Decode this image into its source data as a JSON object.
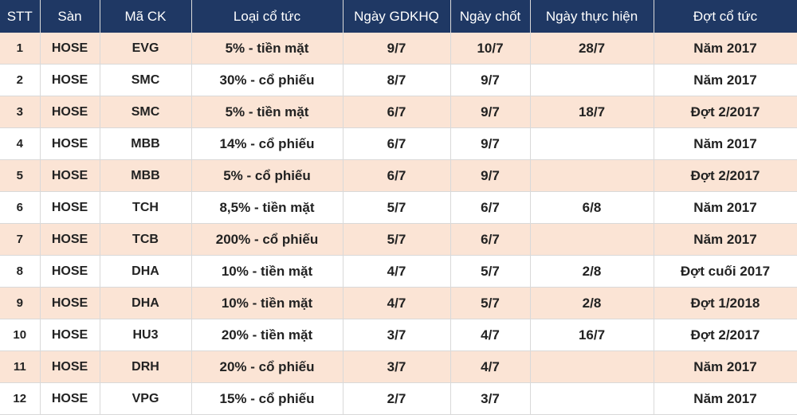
{
  "headers": [
    "STT",
    "Sàn",
    "Mã CK",
    "Loại cổ tức",
    "Ngày GDKHQ",
    "Ngày chốt",
    "Ngày thực hiện",
    "Đợt cổ tức"
  ],
  "rows": [
    [
      "1",
      "HOSE",
      "EVG",
      "5% - tiền mặt",
      "9/7",
      "10/7",
      "28/7",
      "Năm 2017"
    ],
    [
      "2",
      "HOSE",
      "SMC",
      "30% - cổ phiếu",
      "8/7",
      "9/7",
      "",
      "Năm 2017"
    ],
    [
      "3",
      "HOSE",
      "SMC",
      "5% - tiền mặt",
      "6/7",
      "9/7",
      "18/7",
      "Đợt 2/2017"
    ],
    [
      "4",
      "HOSE",
      "MBB",
      "14% - cổ phiếu",
      "6/7",
      "9/7",
      "",
      "Năm 2017"
    ],
    [
      "5",
      "HOSE",
      "MBB",
      "5% - cổ phiếu",
      "6/7",
      "9/7",
      "",
      "Đợt 2/2017"
    ],
    [
      "6",
      "HOSE",
      "TCH",
      "8,5% - tiền mặt",
      "5/7",
      "6/7",
      "6/8",
      "Năm 2017"
    ],
    [
      "7",
      "HOSE",
      "TCB",
      "200% - cổ phiếu",
      "5/7",
      "6/7",
      "",
      "Năm 2017"
    ],
    [
      "8",
      "HOSE",
      "DHA",
      "10% - tiền mặt",
      "4/7",
      "5/7",
      "2/8",
      "Đợt cuối 2017"
    ],
    [
      "9",
      "HOSE",
      "DHA",
      "10% - tiền mặt",
      "4/7",
      "5/7",
      "2/8",
      "Đợt 1/2018"
    ],
    [
      "10",
      "HOSE",
      "HU3",
      "20% - tiền mặt",
      "3/7",
      "4/7",
      "16/7",
      "Đợt 2/2017"
    ],
    [
      "11",
      "HOSE",
      "DRH",
      "20% - cổ phiếu",
      "3/7",
      "4/7",
      "",
      "Năm 2017"
    ],
    [
      "12",
      "HOSE",
      "VPG",
      "15% - cổ phiếu",
      "2/7",
      "3/7",
      "",
      "Năm 2017"
    ]
  ],
  "colors": {
    "header_bg": "#1f3864",
    "header_text": "#ffffff",
    "stripe": "#fbe4d5",
    "row_bg": "#ffffff"
  }
}
